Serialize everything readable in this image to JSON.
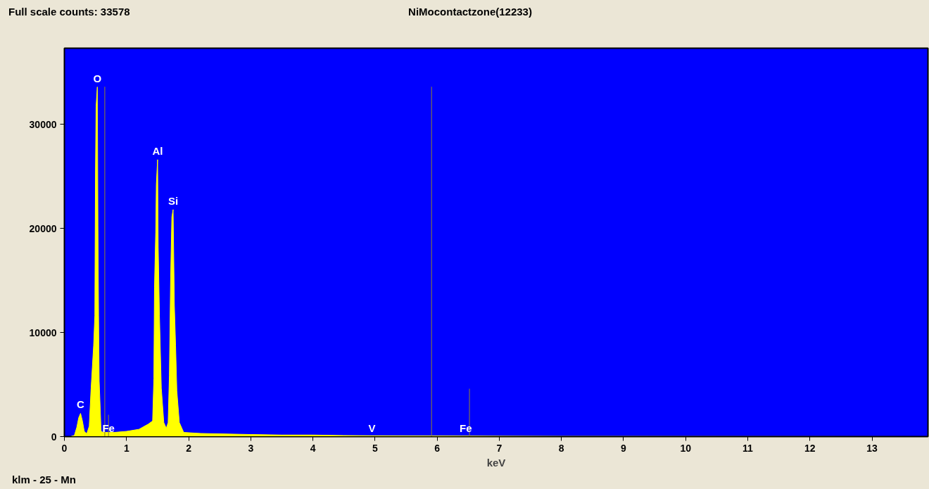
{
  "chart_data": {
    "type": "area",
    "title": "NiMocontactzone(12233)",
    "xlabel": "keV",
    "xlim": [
      0,
      13.9
    ],
    "ylim": [
      0,
      37300
    ],
    "xticks": [
      0,
      1,
      2,
      3,
      4,
      5,
      6,
      7,
      8,
      9,
      10,
      11,
      12,
      13
    ],
    "yticks": [
      0,
      10000,
      20000,
      30000
    ],
    "grid": false,
    "series": [
      {
        "color": "#ffff00",
        "x": [
          0.1,
          0.16,
          0.2,
          0.23,
          0.26,
          0.29,
          0.32,
          0.36,
          0.4,
          0.43,
          0.47,
          0.49,
          0.5,
          0.51,
          0.53,
          0.54,
          0.55,
          0.56,
          0.59,
          0.62,
          0.8,
          1.0,
          1.2,
          1.35,
          1.42,
          1.44,
          1.45,
          1.47,
          1.48,
          1.5,
          1.51,
          1.53,
          1.56,
          1.6,
          1.64,
          1.67,
          1.69,
          1.71,
          1.73,
          1.75,
          1.77,
          1.79,
          1.81,
          1.85,
          1.92,
          2.2,
          2.6,
          3.0,
          3.5,
          4.0,
          4.5,
          5.0,
          6.0,
          7.0,
          8.0,
          10.0,
          13.9
        ],
        "values": [
          0,
          100,
          900,
          1800,
          2230,
          1500,
          500,
          270,
          1000,
          4660,
          8700,
          11600,
          25100,
          31700,
          33580,
          20300,
          11600,
          5340,
          540,
          400,
          400,
          500,
          700,
          1200,
          1500,
          5600,
          14300,
          19600,
          24200,
          26600,
          18200,
          11600,
          4660,
          1350,
          800,
          1350,
          5900,
          15300,
          21100,
          21800,
          12600,
          8700,
          4400,
          1350,
          400,
          300,
          250,
          200,
          150,
          150,
          100,
          80,
          60,
          40,
          20,
          10,
          0
        ]
      },
      {
        "type": "bar",
        "color": "#8b7d3a",
        "x": [
          0.65,
          0.71,
          5.91,
          6.52
        ],
        "values": [
          33600,
          2100,
          33600,
          4600
        ]
      }
    ],
    "annotations": [
      "Full scale counts: 33578",
      "klm - 25 - Mn",
      {
        "text": "O",
        "x": 0.53,
        "y": 33580
      },
      {
        "text": "Al",
        "x": 1.5,
        "y": 26600
      },
      {
        "text": "Si",
        "x": 1.75,
        "y": 21800
      },
      {
        "text": "C",
        "x": 0.26,
        "y": 2230
      },
      {
        "text": "Fe",
        "x": 0.71,
        "y": 0
      },
      {
        "text": "V",
        "x": 4.95,
        "y": 0
      },
      {
        "text": "Fe",
        "x": 6.46,
        "y": 0
      }
    ]
  }
}
